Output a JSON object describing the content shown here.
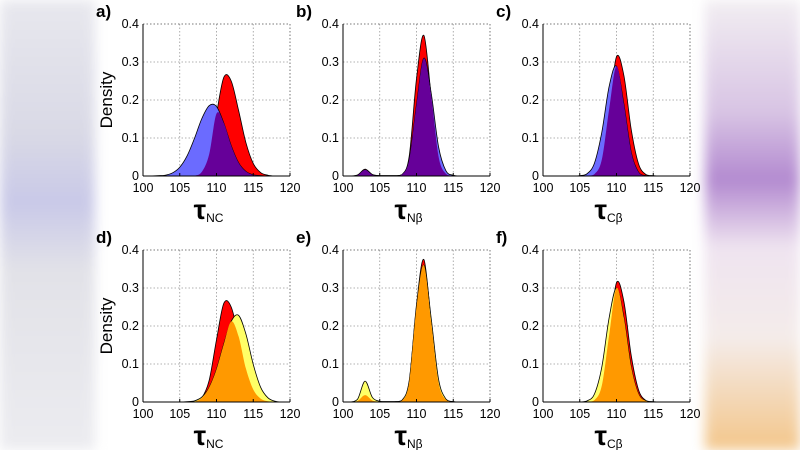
{
  "colors": {
    "red": "#ff0000",
    "blue": "#6b6bff",
    "purple": "#660099",
    "yellow": "#ffff66",
    "orange": "#ff9900"
  },
  "chart_data": [
    {
      "type": "area",
      "panel_label": "a)",
      "ylabel": "Density",
      "xlabel_symbol": "τ",
      "xlabel_sub": "NC",
      "xlim": [
        100,
        120
      ],
      "ylim": [
        0,
        0.4
      ],
      "xticks": [
        100,
        105,
        110,
        115,
        120
      ],
      "yticks": [
        0,
        0.1,
        0.2,
        0.3,
        0.4
      ],
      "grid": true,
      "x": [
        100,
        101,
        102,
        103,
        104,
        105,
        106,
        107,
        108,
        109,
        110,
        111,
        112,
        113,
        114,
        115,
        116,
        117,
        118,
        119,
        120
      ],
      "series": [
        {
          "color": "red",
          "values": [
            0,
            0,
            0,
            0,
            0,
            0,
            0,
            0.001,
            0.011,
            0.057,
            0.164,
            0.26,
            0.25,
            0.173,
            0.088,
            0.033,
            0.009,
            0.002,
            0,
            0,
            0
          ]
        },
        {
          "color": "blue",
          "values": [
            0,
            0,
            0.001,
            0.002,
            0.008,
            0.023,
            0.053,
            0.099,
            0.151,
            0.185,
            0.183,
            0.139,
            0.08,
            0.035,
            0.012,
            0.003,
            0.001,
            0,
            0,
            0,
            0
          ]
        }
      ],
      "overlap_color": "purple"
    },
    {
      "type": "area",
      "panel_label": "b)",
      "ylabel": "",
      "xlabel_symbol": "τ",
      "xlabel_sub": "Nβ",
      "xlim": [
        100,
        120
      ],
      "ylim": [
        0,
        0.4
      ],
      "xticks": [
        100,
        105,
        110,
        115,
        120
      ],
      "yticks": [
        0,
        0.1,
        0.2,
        0.3,
        0.4
      ],
      "grid": true,
      "x": [
        100,
        101,
        102,
        103,
        104,
        105,
        106,
        107,
        108,
        109,
        110,
        111,
        112,
        113,
        114,
        115,
        116,
        117,
        118,
        119,
        120
      ],
      "series": [
        {
          "color": "red",
          "values": [
            0,
            0,
            0.003,
            0.018,
            0.004,
            0.001,
            0.001,
            0.001,
            0.003,
            0.051,
            0.256,
            0.37,
            0.21,
            0.051,
            0.006,
            0.001,
            0,
            0,
            0,
            0,
            0
          ]
        },
        {
          "color": "blue",
          "values": [
            0,
            0,
            0.002,
            0.016,
            0.003,
            0.001,
            0.001,
            0.001,
            0.003,
            0.042,
            0.188,
            0.31,
            0.218,
            0.077,
            0.014,
            0.002,
            0,
            0,
            0,
            0,
            0
          ]
        }
      ],
      "overlap_color": "purple"
    },
    {
      "type": "area",
      "panel_label": "c)",
      "ylabel": "",
      "xlabel_symbol": "τ",
      "xlabel_sub": "Cβ",
      "xlim": [
        100,
        120
      ],
      "ylim": [
        0,
        0.4
      ],
      "xticks": [
        100,
        105,
        110,
        115,
        120
      ],
      "yticks": [
        0,
        0.1,
        0.2,
        0.3,
        0.4
      ],
      "grid": true,
      "x": [
        100,
        101,
        102,
        103,
        104,
        105,
        106,
        107,
        108,
        109,
        110,
        111,
        112,
        113,
        114,
        115,
        116,
        117,
        118,
        119,
        120
      ],
      "series": [
        {
          "color": "red",
          "values": [
            0,
            0,
            0,
            0,
            0,
            0,
            0.001,
            0.005,
            0.043,
            0.176,
            0.314,
            0.265,
            0.123,
            0.032,
            0.004,
            0.001,
            0,
            0,
            0,
            0,
            0
          ]
        },
        {
          "color": "blue",
          "values": [
            0,
            0,
            0,
            0,
            0,
            0.001,
            0.006,
            0.034,
            0.115,
            0.236,
            0.289,
            0.19,
            0.063,
            0.01,
            0.001,
            0,
            0,
            0,
            0,
            0,
            0
          ]
        }
      ],
      "overlap_color": "purple"
    },
    {
      "type": "area",
      "panel_label": "d)",
      "ylabel": "Density",
      "xlabel_symbol": "τ",
      "xlabel_sub": "NC",
      "xlim": [
        100,
        120
      ],
      "ylim": [
        0,
        0.4
      ],
      "xticks": [
        100,
        105,
        110,
        115,
        120
      ],
      "yticks": [
        0,
        0.1,
        0.2,
        0.3,
        0.4
      ],
      "grid": true,
      "x": [
        100,
        101,
        102,
        103,
        104,
        105,
        106,
        107,
        108,
        109,
        110,
        111,
        112,
        113,
        114,
        115,
        116,
        117,
        118,
        119,
        120
      ],
      "series": [
        {
          "color": "red",
          "values": [
            0,
            0,
            0,
            0,
            0,
            0,
            0,
            0.001,
            0.011,
            0.057,
            0.164,
            0.26,
            0.25,
            0.173,
            0.088,
            0.033,
            0.009,
            0.002,
            0,
            0,
            0
          ]
        },
        {
          "color": "yellow",
          "values": [
            0,
            0,
            0,
            0,
            0,
            0,
            0.001,
            0.003,
            0.013,
            0.038,
            0.086,
            0.153,
            0.212,
            0.228,
            0.179,
            0.099,
            0.039,
            0.011,
            0.002,
            0,
            0
          ]
        }
      ],
      "overlap_color": "orange"
    },
    {
      "type": "area",
      "panel_label": "e)",
      "ylabel": "",
      "xlabel_symbol": "τ",
      "xlabel_sub": "Nβ",
      "xlim": [
        100,
        120
      ],
      "ylim": [
        0,
        0.4
      ],
      "xticks": [
        100,
        105,
        110,
        115,
        120
      ],
      "yticks": [
        0,
        0.1,
        0.2,
        0.3,
        0.4
      ],
      "grid": true,
      "x": [
        100,
        101,
        102,
        103,
        104,
        105,
        106,
        107,
        108,
        109,
        110,
        111,
        112,
        113,
        114,
        115,
        116,
        117,
        118,
        119,
        120
      ],
      "series": [
        {
          "color": "red",
          "values": [
            0,
            0,
            0.003,
            0.018,
            0.004,
            0.001,
            0.001,
            0.001,
            0.003,
            0.051,
            0.256,
            0.375,
            0.21,
            0.051,
            0.006,
            0.001,
            0,
            0,
            0,
            0,
            0
          ]
        },
        {
          "color": "yellow",
          "values": [
            0,
            0,
            0.008,
            0.055,
            0.012,
            0.002,
            0.001,
            0.001,
            0.004,
            0.055,
            0.25,
            0.36,
            0.22,
            0.06,
            0.008,
            0.001,
            0,
            0,
            0,
            0,
            0
          ]
        }
      ],
      "overlap_color": "orange"
    },
    {
      "type": "area",
      "panel_label": "f)",
      "ylabel": "",
      "xlabel_symbol": "τ",
      "xlabel_sub": "Cβ",
      "xlim": [
        100,
        120
      ],
      "ylim": [
        0,
        0.4
      ],
      "xticks": [
        100,
        105,
        110,
        115,
        120
      ],
      "yticks": [
        0,
        0.1,
        0.2,
        0.3,
        0.4
      ],
      "grid": true,
      "x": [
        100,
        101,
        102,
        103,
        104,
        105,
        106,
        107,
        108,
        109,
        110,
        111,
        112,
        113,
        114,
        115,
        116,
        117,
        118,
        119,
        120
      ],
      "series": [
        {
          "color": "red",
          "values": [
            0,
            0,
            0,
            0,
            0,
            0,
            0.001,
            0.005,
            0.043,
            0.176,
            0.314,
            0.265,
            0.123,
            0.032,
            0.004,
            0.001,
            0,
            0,
            0,
            0,
            0
          ]
        },
        {
          "color": "yellow",
          "values": [
            0,
            0,
            0,
            0,
            0,
            0,
            0.003,
            0.021,
            0.092,
            0.222,
            0.3,
            0.222,
            0.092,
            0.021,
            0.003,
            0,
            0,
            0,
            0,
            0,
            0
          ]
        }
      ],
      "overlap_color": "orange"
    }
  ]
}
